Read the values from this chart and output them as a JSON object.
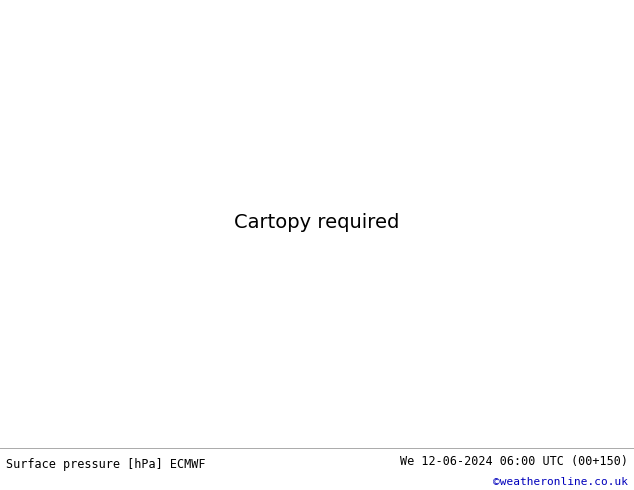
{
  "title_left": "Surface pressure [hPa] ECMWF",
  "title_right": "We 12-06-2024 06:00 UTC (00+150)",
  "copyright": "©weatheronline.co.uk",
  "land_color": "#c8e0a0",
  "mountain_color": "#a0a0a0",
  "sea_color": "#d8d8d8",
  "border_color": "#808080",
  "coastline_color": "#606060",
  "footer_bg": "#ffffff",
  "text_color_black": "#000000",
  "text_color_blue": "#0000bb",
  "isobar_black_color": "#000000",
  "isobar_red_color": "#cc0000",
  "isobar_blue_color": "#0000bb",
  "isobar_black_lw": 1.6,
  "isobar_red_lw": 1.3,
  "isobar_blue_lw": 1.3,
  "figsize": [
    6.34,
    4.9
  ],
  "dpi": 100,
  "extent": [
    -28,
    42,
    27,
    72
  ],
  "label_fontsize": 7
}
